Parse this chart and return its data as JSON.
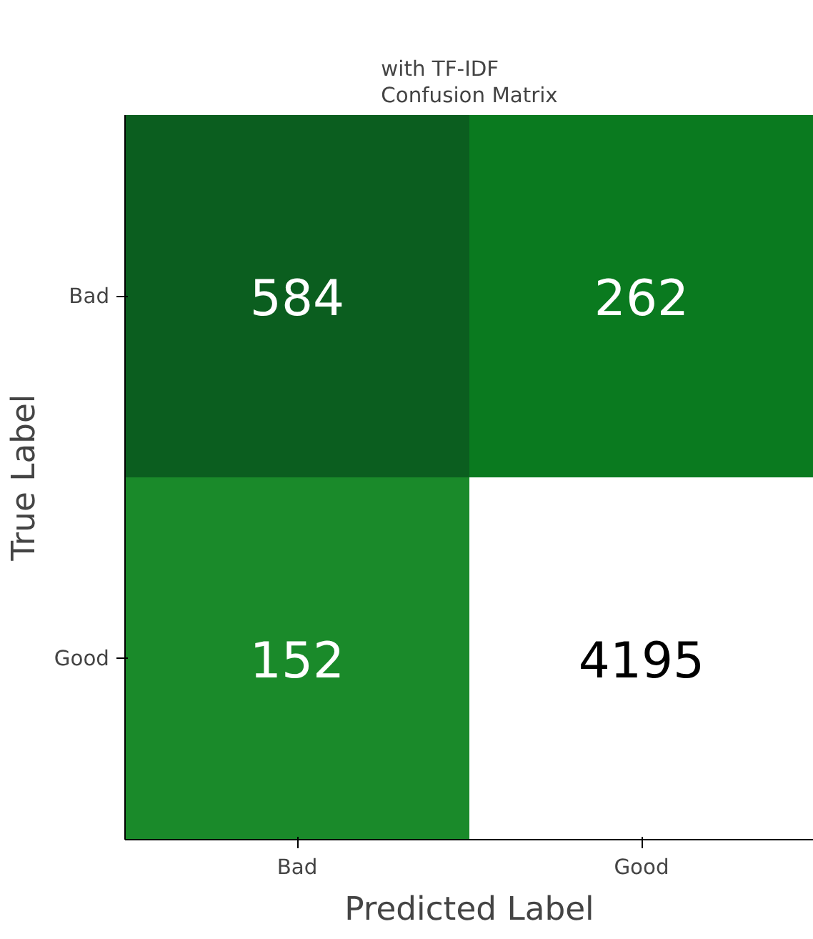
{
  "chart_data": {
    "type": "heatmap",
    "title": "with TF-IDF\nConfusion Matrix",
    "xlabel": "Predicted Label",
    "ylabel": "True Label",
    "categories": [
      "Bad",
      "Good"
    ],
    "y_categories": [
      "Bad",
      "Good"
    ],
    "cells": [
      [
        584,
        262
      ],
      [
        152,
        4195
      ]
    ],
    "data_labels": true
  }
}
